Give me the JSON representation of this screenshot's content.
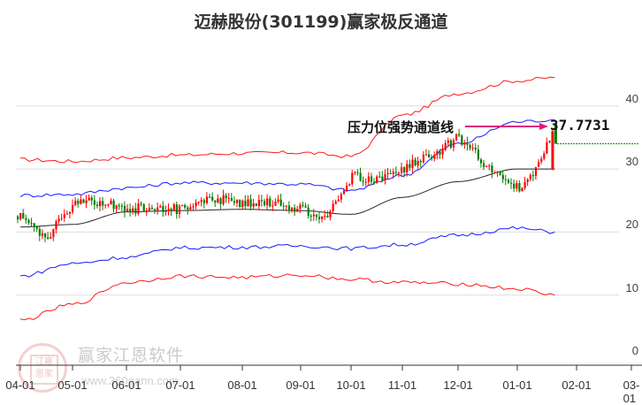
{
  "title": "迈赫股份(301199)赢家极反通道",
  "annotation": {
    "label": "压力位强势通道线",
    "value": "37.7731",
    "arrow_color": "#e0197d"
  },
  "watermark": {
    "brand": "赢家江恩软件",
    "url": "www.360gann.com",
    "seal_text": "江赢恩家"
  },
  "colors": {
    "up_candle": "#ff0000",
    "down_candle": "#008000",
    "outer_band": "#ff0000",
    "inner_band": "#0000ff",
    "mid_line": "#000000",
    "gridline": "#dddddd",
    "target_line": "#008000"
  },
  "chart_data": {
    "type": "candlestick_with_channels",
    "title": "迈赫股份(301199)赢家极反通道",
    "xlabel": "",
    "ylabel": "",
    "ylim": [
      0,
      45
    ],
    "y_ticks": [
      0,
      10,
      20,
      30,
      40
    ],
    "x_ticks": [
      "04-01",
      "05-01",
      "06-01",
      "07-01",
      "08-01",
      "09-01",
      "10-01",
      "11-01",
      "12-01",
      "01-01",
      "02-01",
      "03-01"
    ],
    "grid": "horizontal",
    "annotations": [
      {
        "text": "压力位强势通道线",
        "value": 37.7731,
        "type": "arrow-right"
      }
    ],
    "target_level": 34,
    "series": [
      {
        "name": "upper-outer-band",
        "color": "red",
        "x": [
          "04-01",
          "05-01",
          "06-01",
          "07-01",
          "08-01",
          "09-01",
          "10-01",
          "11-01",
          "12-01",
          "01-01",
          "01-20"
        ],
        "values": [
          31.5,
          31.2,
          31.8,
          32.2,
          32.5,
          32.6,
          32.0,
          38.5,
          42.0,
          44.0,
          44.5
        ]
      },
      {
        "name": "upper-inner-band",
        "color": "blue",
        "x": [
          "04-01",
          "05-01",
          "06-01",
          "07-01",
          "08-01",
          "09-01",
          "10-01",
          "11-01",
          "12-01",
          "01-01",
          "01-20"
        ],
        "values": [
          25.8,
          26.0,
          27.0,
          27.8,
          27.8,
          27.6,
          26.6,
          29.0,
          34.0,
          37.5,
          37.8
        ]
      },
      {
        "name": "middle-line",
        "color": "black",
        "x": [
          "04-01",
          "05-01",
          "06-01",
          "07-01",
          "08-01",
          "09-01",
          "10-01",
          "11-01",
          "12-01",
          "01-01",
          "01-20"
        ],
        "values": [
          20.8,
          21.2,
          23.2,
          23.4,
          23.6,
          23.4,
          22.8,
          25.5,
          28.0,
          30.0,
          30.0
        ]
      },
      {
        "name": "lower-inner-band",
        "color": "blue",
        "x": [
          "04-01",
          "05-01",
          "06-01",
          "07-01",
          "08-01",
          "09-01",
          "10-01",
          "11-01",
          "12-01",
          "01-01",
          "01-20"
        ],
        "values": [
          13.0,
          15.0,
          16.0,
          17.5,
          17.6,
          17.8,
          17.4,
          18.0,
          19.5,
          20.6,
          20.0
        ]
      },
      {
        "name": "lower-outer-band",
        "color": "red",
        "x": [
          "04-01",
          "05-01",
          "06-01",
          "07-01",
          "08-01",
          "09-01",
          "10-01",
          "11-01",
          "12-01",
          "01-01",
          "01-20"
        ],
        "values": [
          6.0,
          8.5,
          12.0,
          13.0,
          12.8,
          13.2,
          12.5,
          12.0,
          11.8,
          11.0,
          10.0
        ]
      },
      {
        "name": "price-close",
        "color": "candles",
        "x": [
          "04-01",
          "04-15",
          "05-01",
          "05-15",
          "06-01",
          "06-15",
          "07-01",
          "07-15",
          "08-01",
          "08-15",
          "09-01",
          "09-15",
          "10-01",
          "10-15",
          "11-01",
          "11-15",
          "12-01",
          "12-15",
          "01-01",
          "01-10",
          "01-20"
        ],
        "values": [
          22.5,
          19.0,
          24.5,
          24.8,
          23.5,
          24.0,
          23.5,
          25.5,
          24.5,
          24.8,
          23.5,
          22.0,
          29.0,
          28.0,
          30.0,
          32.0,
          35.0,
          30.5,
          27.0,
          30.0,
          37.0
        ]
      }
    ]
  }
}
